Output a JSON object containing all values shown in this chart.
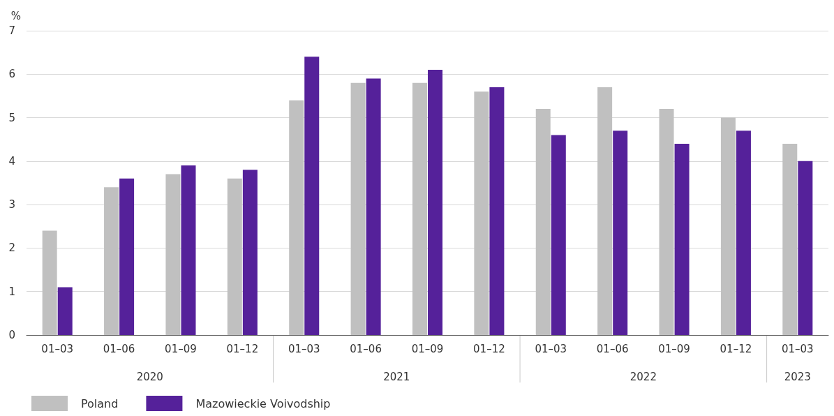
{
  "chart_data": {
    "type": "bar",
    "ylabel": "%",
    "categories": [
      "01–03",
      "01–06",
      "01–09",
      "01–12",
      "01–03",
      "01–06",
      "01–09",
      "01–12",
      "01–03",
      "01–06",
      "01–09",
      "01–12",
      "01–03"
    ],
    "annotations": [
      "2020",
      "2021",
      "2022",
      "2023"
    ],
    "series": [
      {
        "name": "Poland",
        "color": "#c0c0c0",
        "values": [
          2.4,
          3.4,
          3.7,
          3.6,
          5.4,
          5.8,
          5.8,
          5.6,
          5.2,
          5.7,
          5.2,
          5.0,
          4.4
        ]
      },
      {
        "name": "Mazowieckie Voivodship",
        "color": "#55219a",
        "values": [
          1.1,
          3.6,
          3.9,
          3.8,
          6.4,
          5.9,
          6.1,
          5.7,
          4.6,
          4.7,
          4.4,
          4.7,
          4.0
        ]
      }
    ],
    "ylim": [
      0,
      7
    ],
    "yticks": [
      0,
      1,
      2,
      3,
      4,
      5,
      6,
      7
    ],
    "grid": "y",
    "legend": "bottom left"
  }
}
